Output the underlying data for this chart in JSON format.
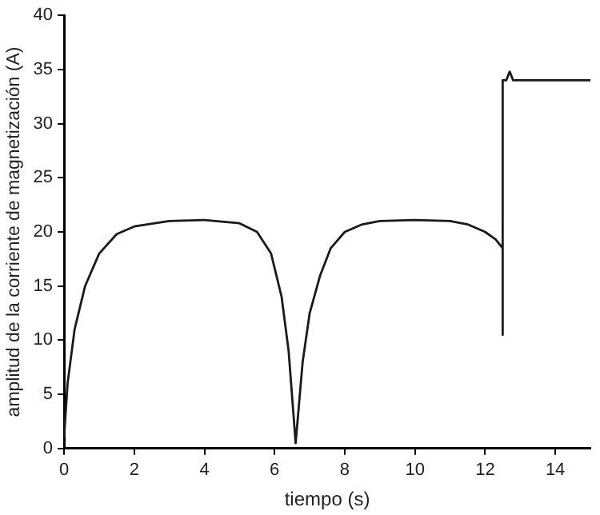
{
  "chart_data": {
    "type": "line",
    "xlabel": "tiempo (s)",
    "ylabel": "amplitud de la corriente de magnetización (A)",
    "xlim": [
      0,
      15
    ],
    "xticks": [
      0,
      2,
      4,
      6,
      8,
      10,
      12,
      14
    ],
    "ylim": [
      0,
      40
    ],
    "yticks": [
      0,
      5,
      10,
      15,
      20,
      25,
      30,
      35,
      40
    ],
    "grid": false,
    "legend": false,
    "marker": "none",
    "line_style": "solid",
    "series": [
      {
        "color": "#1a1a1a",
        "x": [
          0,
          0.1,
          0.3,
          0.6,
          1,
          1.5,
          2,
          3,
          4,
          5,
          5.5,
          5.9,
          6.2,
          6.4,
          6.6,
          6.8,
          7,
          7.3,
          7.6,
          8,
          8.5,
          9,
          10,
          11,
          11.5,
          12,
          12.3,
          12.5,
          12.5,
          12.5,
          12.6,
          12.7,
          12.8,
          15
        ],
        "values": [
          1,
          6,
          11,
          15,
          18,
          19.8,
          20.5,
          21,
          21.1,
          20.8,
          20,
          18,
          14,
          9,
          0.5,
          8,
          12.5,
          16,
          18.5,
          20,
          20.7,
          21,
          21.1,
          21,
          20.7,
          20,
          19.3,
          18.5,
          10.5,
          34,
          34,
          34.8,
          34,
          34
        ]
      }
    ]
  }
}
